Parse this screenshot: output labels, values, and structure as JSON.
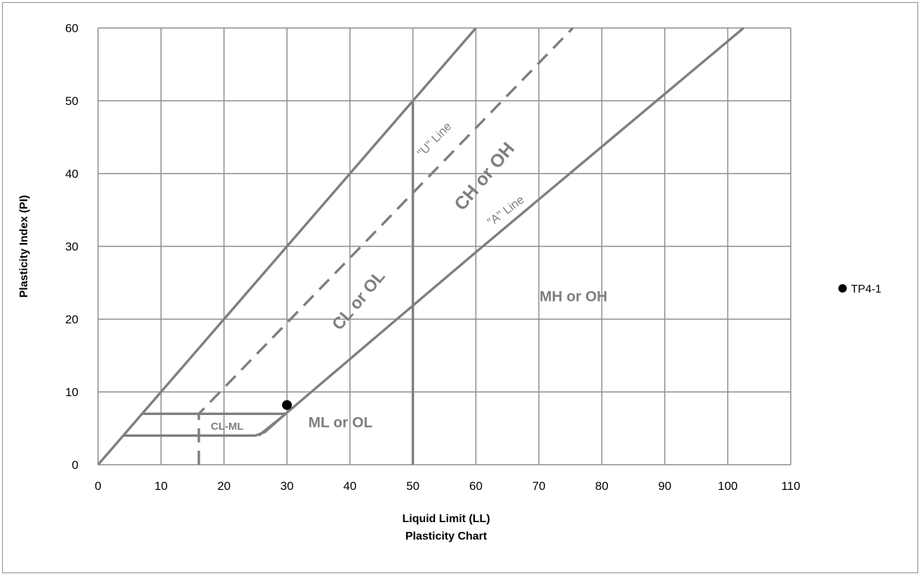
{
  "chart_data": {
    "type": "scatter",
    "title": "Plasticity Chart",
    "xlabel": "Liquid Limit (LL)",
    "ylabel": "Plasticity Index (PI)",
    "xlim": [
      0,
      110
    ],
    "ylim": [
      0,
      60
    ],
    "x_ticks": [
      "0",
      "10",
      "20",
      "30",
      "40",
      "50",
      "60",
      "70",
      "80",
      "90",
      "100",
      "110"
    ],
    "y_ticks": [
      "0",
      "10",
      "20",
      "30",
      "40",
      "50",
      "60"
    ],
    "grid": true,
    "legend_position": "right",
    "series": [
      {
        "name": "TP4-1",
        "marker": "circle",
        "color": "#000000",
        "points": [
          {
            "x": 30,
            "y": 8.2
          }
        ]
      }
    ],
    "reference_lines": [
      {
        "label": "\"U\" Line",
        "style": "dashed",
        "color": "#7f7f7f",
        "points": [
          [
            16,
            0
          ],
          [
            16,
            7
          ],
          [
            75.4,
            60
          ]
        ]
      },
      {
        "label": "\"A\" Line",
        "style": "solid",
        "color": "#7f7f7f",
        "points": [
          [
            25.5,
            4
          ],
          [
            29.8,
            7
          ],
          [
            46.5,
            19.3
          ],
          [
            60,
            29.2
          ],
          [
            102.5,
            60
          ]
        ]
      },
      {
        "label": "",
        "style": "solid",
        "color": "#7f7f7f",
        "points": [
          [
            0,
            0
          ],
          [
            60,
            60
          ]
        ]
      },
      {
        "label": "",
        "style": "solid",
        "color": "#7f7f7f",
        "points": [
          [
            50,
            0
          ],
          [
            50,
            50
          ]
        ]
      },
      {
        "label": "",
        "style": "solid",
        "color": "#7f7f7f",
        "points": [
          [
            7,
            7
          ],
          [
            29.8,
            7
          ]
        ]
      },
      {
        "label": "",
        "style": "solid",
        "color": "#7f7f7f",
        "points": [
          [
            4,
            4
          ],
          [
            25,
            4
          ],
          [
            26.5,
            4.5
          ],
          [
            29.8,
            7
          ]
        ]
      }
    ],
    "annotations": [
      {
        "text": "CH or OH",
        "x": 61.5,
        "y": 39.5,
        "rotation": -50,
        "size": 26
      },
      {
        "text": "CL or OL",
        "x": 41.5,
        "y": 22.5,
        "rotation": -50,
        "size": 24
      },
      {
        "text": "MH or OH",
        "x": 75.5,
        "y": 23,
        "rotation": 0,
        "size": 21
      },
      {
        "text": "ML or OL",
        "x": 38.5,
        "y": 5.7,
        "rotation": 0,
        "size": 21
      },
      {
        "text": "CL-ML",
        "x": 20.5,
        "y": 5.2,
        "rotation": 0,
        "size": 15
      },
      {
        "text": "\"U\" Line",
        "x": 53.5,
        "y": 44.6,
        "rotation": -46,
        "size": 17
      },
      {
        "text": "\"A\" Line",
        "x": 64.8,
        "y": 34.8,
        "rotation": -37,
        "size": 17
      }
    ]
  }
}
